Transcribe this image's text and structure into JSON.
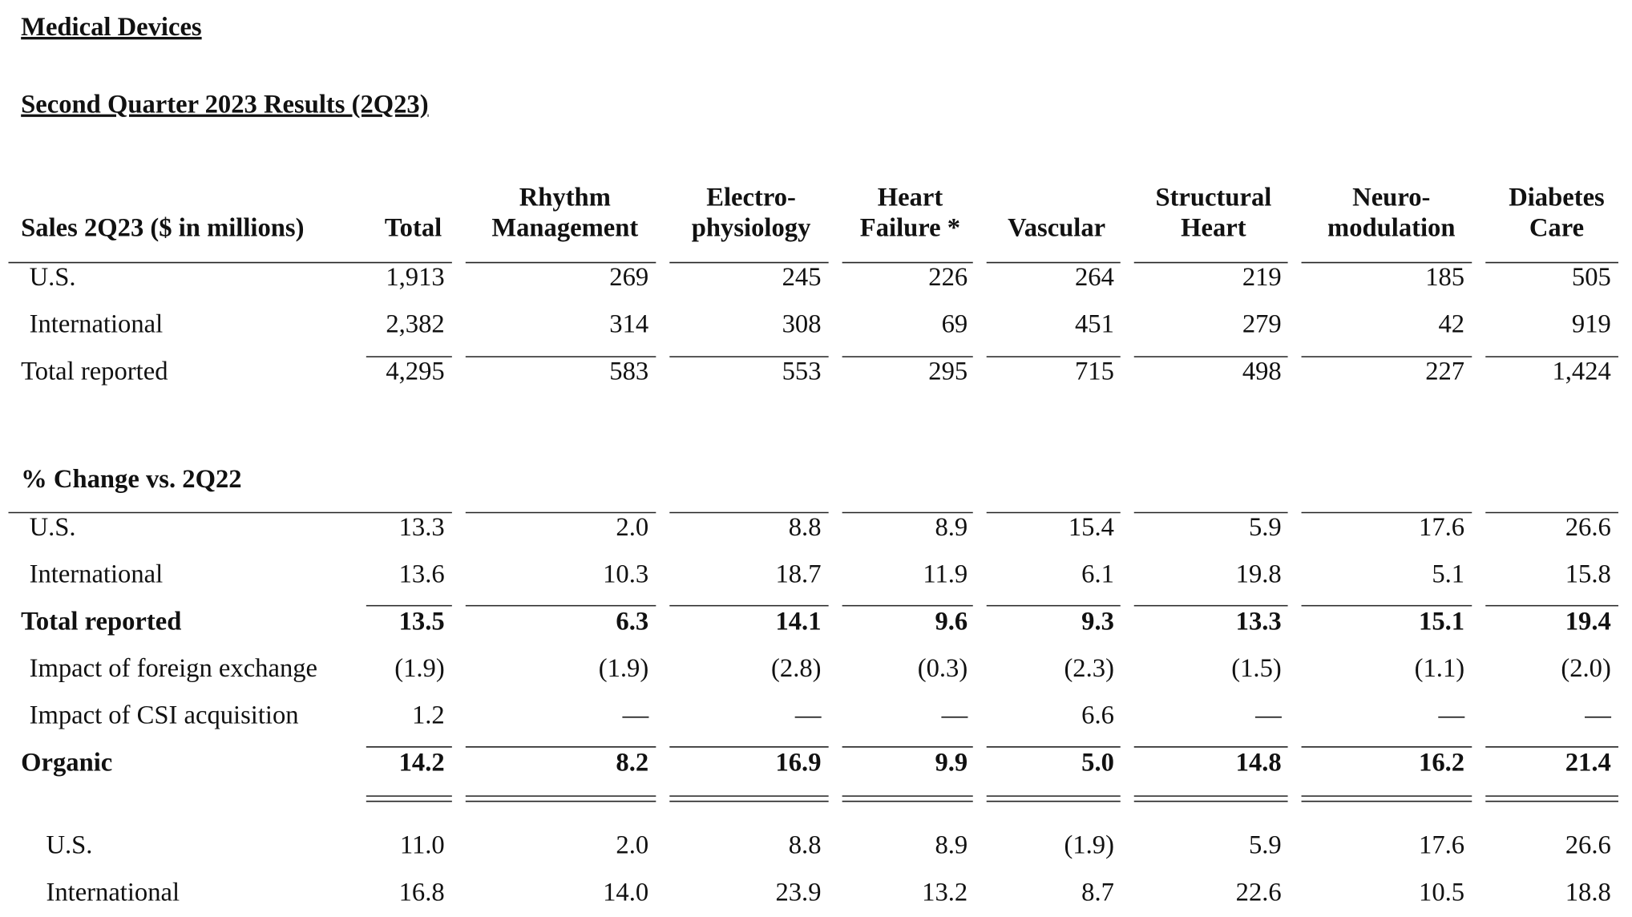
{
  "header": {
    "title": "Medical Devices",
    "subtitle": "Second Quarter 2023 Results (2Q23)"
  },
  "table": {
    "columns": [
      [
        "Sales 2Q23 ($ in millions)"
      ],
      [
        "Total"
      ],
      [
        "Rhythm",
        "Management"
      ],
      [
        "Electro-",
        "physiology"
      ],
      [
        "Heart",
        "Failure *"
      ],
      [
        "Vascular"
      ],
      [
        "Structural",
        "Heart"
      ],
      [
        "Neuro-",
        "modulation"
      ],
      [
        "Diabetes",
        "Care"
      ]
    ],
    "sales_rows": [
      [
        "U.S.",
        "1,913",
        "269",
        "245",
        "226",
        "264",
        "219",
        "185",
        "505"
      ],
      [
        "International",
        "2,382",
        "314",
        "308",
        "69",
        "451",
        "279",
        "42",
        "919"
      ],
      [
        "Total reported",
        "4,295",
        "583",
        "553",
        "295",
        "715",
        "498",
        "227",
        "1,424"
      ]
    ],
    "change_title": "% Change vs. 2Q22",
    "change_rows": [
      [
        "U.S.",
        "13.3",
        "2.0",
        "8.8",
        "8.9",
        "15.4",
        "5.9",
        "17.6",
        "26.6"
      ],
      [
        "International",
        "13.6",
        "10.3",
        "18.7",
        "11.9",
        "6.1",
        "19.8",
        "5.1",
        "15.8"
      ],
      [
        "Total reported",
        "13.5",
        "6.3",
        "14.1",
        "9.6",
        "9.3",
        "13.3",
        "15.1",
        "19.4"
      ],
      [
        "Impact of foreign exchange",
        "(1.9)",
        "(1.9)",
        "(2.8)",
        "(0.3)",
        "(2.3)",
        "(1.5)",
        "(1.1)",
        "(2.0)"
      ],
      [
        "Impact of CSI acquisition",
        "1.2",
        "—",
        "—",
        "—",
        "6.6",
        "—",
        "—",
        "—"
      ],
      [
        "Organic",
        "14.2",
        "8.2",
        "16.9",
        "9.9",
        "5.0",
        "14.8",
        "16.2",
        "21.4"
      ],
      [
        "U.S.",
        "11.0",
        "2.0",
        "8.8",
        "8.9",
        "(1.9)",
        "5.9",
        "17.6",
        "26.6"
      ],
      [
        "International",
        "16.8",
        "14.0",
        "23.9",
        "13.2",
        "8.7",
        "22.6",
        "10.5",
        "18.8"
      ]
    ]
  }
}
